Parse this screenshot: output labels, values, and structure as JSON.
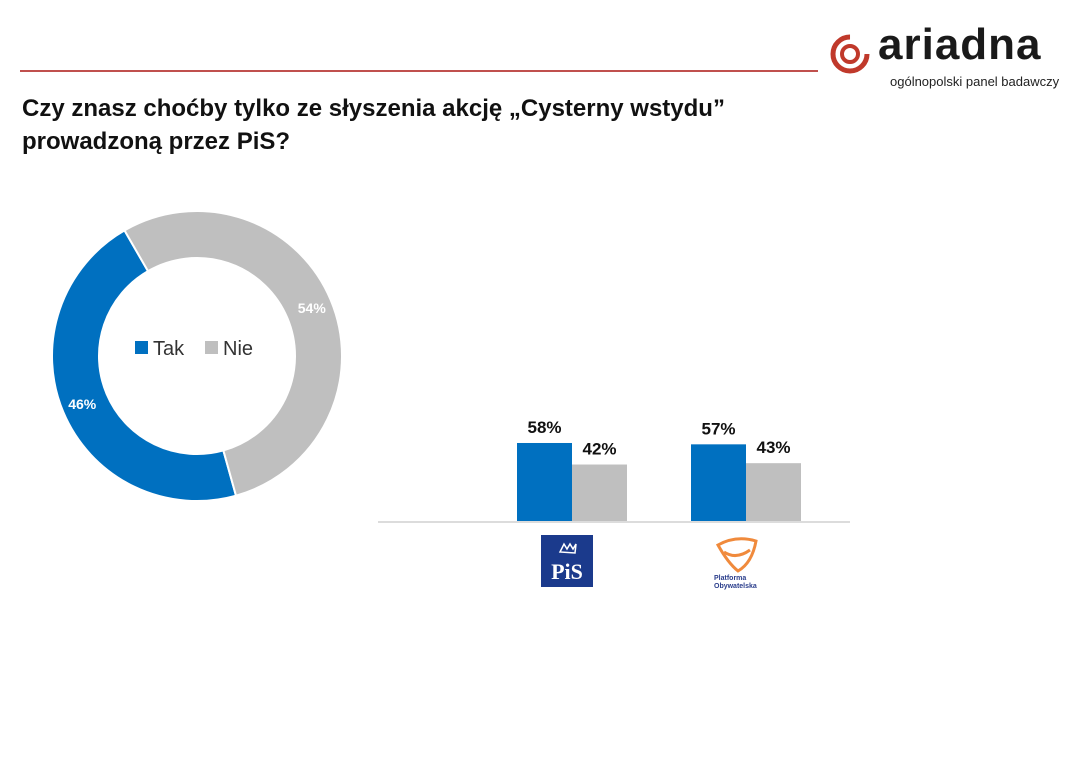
{
  "title": "Czy znasz choćby tylko ze słyszenia akcję „Cysterny wstydu” prowadzoną przez PiS?",
  "logo": {
    "name": "ariadna",
    "tagline": "ogólnopolski panel badawczy"
  },
  "colors": {
    "tak": "#0070c0",
    "nie": "#bfbfbf",
    "accent": "#c0504d"
  },
  "chart_data": [
    {
      "type": "pie",
      "donut": true,
      "legend": {
        "position": "center",
        "entries": [
          "Tak",
          "Nie"
        ]
      },
      "slices": [
        {
          "label": "Tak",
          "value": 46,
          "data_label": "46%"
        },
        {
          "label": "Nie",
          "value": 54,
          "data_label": "54%"
        }
      ]
    },
    {
      "type": "bar",
      "categories": [
        "PiS",
        "Platforma Obywatelska"
      ],
      "category_icons": [
        "pis-logo",
        "platforma-obywatelska-logo"
      ],
      "series": [
        {
          "name": "Tak",
          "values": [
            58,
            57
          ],
          "data_labels": [
            "58%",
            "57%"
          ]
        },
        {
          "name": "Nie",
          "values": [
            42,
            43
          ],
          "data_labels": [
            "42%",
            "43%"
          ]
        }
      ],
      "ylim": [
        0,
        100
      ]
    }
  ]
}
